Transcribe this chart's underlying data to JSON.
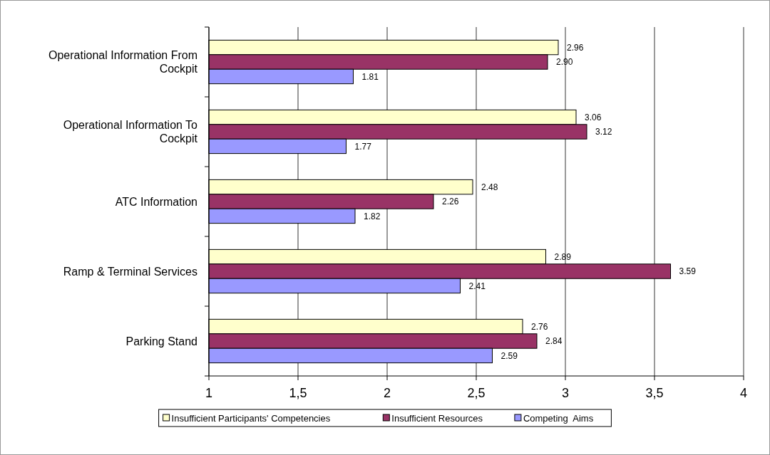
{
  "chart_data": {
    "type": "bar",
    "orientation": "horizontal",
    "categories": [
      "Operational Information From Cockpit",
      "Operational Information To Cockpit",
      "ATC Information",
      "Ramp & Terminal Services",
      "Parking Stand"
    ],
    "series": [
      {
        "name": "Insufficient Participants' Competencies",
        "color": "#ffffcc",
        "values": [
          2.96,
          3.06,
          2.48,
          2.89,
          2.76
        ],
        "value_labels": [
          "2.96",
          "3.06",
          "2.48",
          "2.89",
          "2.76"
        ]
      },
      {
        "name": "Insufficient Resources",
        "color": "#993366",
        "values": [
          2.9,
          3.12,
          2.26,
          3.59,
          2.84
        ],
        "value_labels": [
          "2.90",
          "3.12",
          "2.26",
          "3.59",
          "2.84"
        ]
      },
      {
        "name": "Competing  Aims",
        "color": "#9999ff",
        "values": [
          1.81,
          1.77,
          1.82,
          2.41,
          2.59
        ],
        "value_labels": [
          "1.81",
          "1.77",
          "1.82",
          "2.41",
          "2.59"
        ]
      }
    ],
    "xlim": [
      1,
      4
    ],
    "xticks": [
      1,
      {
        "value": 1.5,
        "label": "1,5"
      },
      2,
      {
        "value": 2.5,
        "label": "2,5"
      },
      3,
      {
        "value": 3.5,
        "label": "3,5"
      },
      4
    ],
    "grid": "x",
    "legend": "bottom"
  }
}
